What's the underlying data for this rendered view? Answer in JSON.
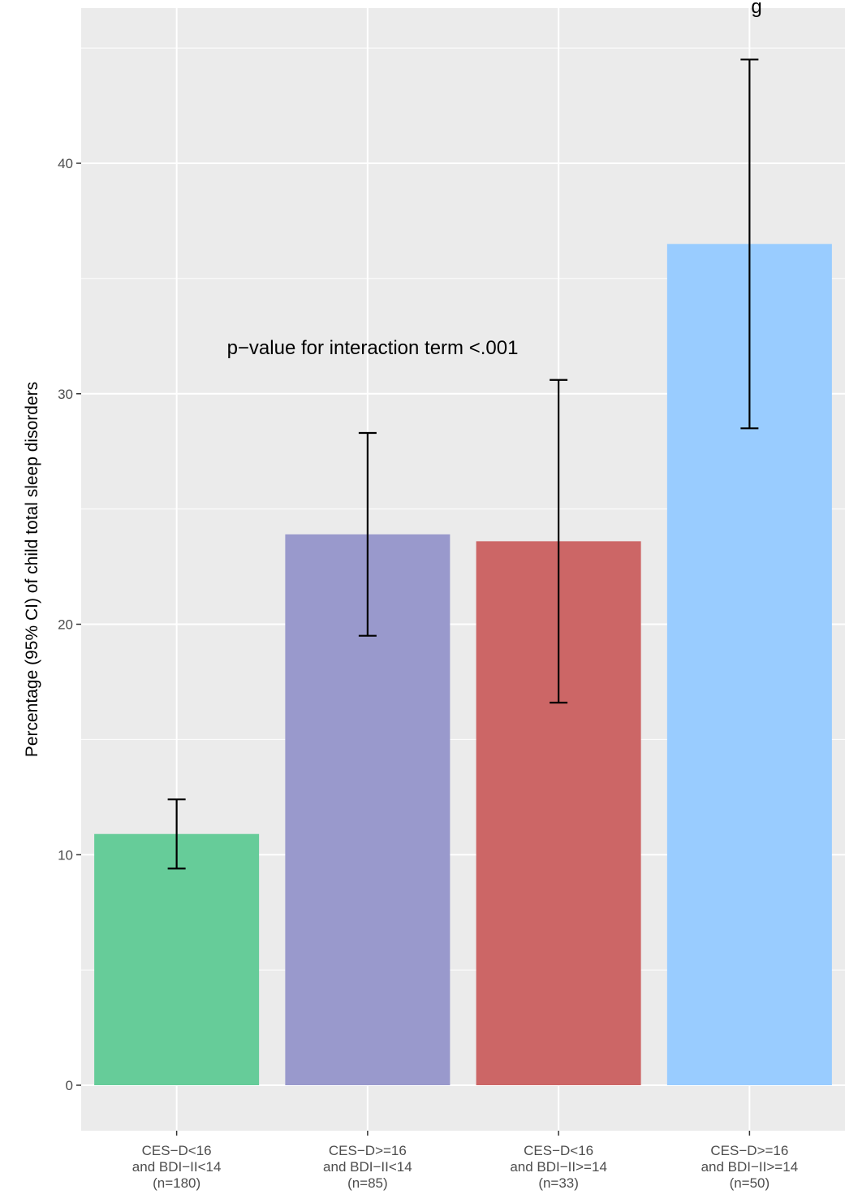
{
  "chart_data": {
    "type": "bar",
    "title": "g",
    "xlabel": "",
    "ylabel": "Percentage (95% CI) of child total sleep disorders",
    "annotation": "p−value for interaction term <.001",
    "ylim": [
      -2,
      47
    ],
    "yticks": [
      0,
      10,
      20,
      30,
      40
    ],
    "grid": true,
    "legend": "none",
    "categories": [
      [
        "CES−D<16",
        "and BDI−II<14",
        "(n=180)"
      ],
      [
        "CES−D>=16",
        "and BDI−II<14",
        "(n=85)"
      ],
      [
        "CES−D<16",
        "and BDI−II>=14",
        "(n=33)"
      ],
      [
        "CES−D>=16",
        "and BDI−II>=14",
        "(n=50)"
      ]
    ],
    "values": [
      10.9,
      23.9,
      23.6,
      36.5
    ],
    "ci_low": [
      9.4,
      19.5,
      16.6,
      28.5
    ],
    "ci_high": [
      12.4,
      28.3,
      30.6,
      44.5
    ],
    "colors": [
      "#66CC99",
      "#9999CC",
      "#CC6666",
      "#99CCFF"
    ],
    "panel_background": "#EBEBEB",
    "grid_color": "#FFFFFF"
  }
}
